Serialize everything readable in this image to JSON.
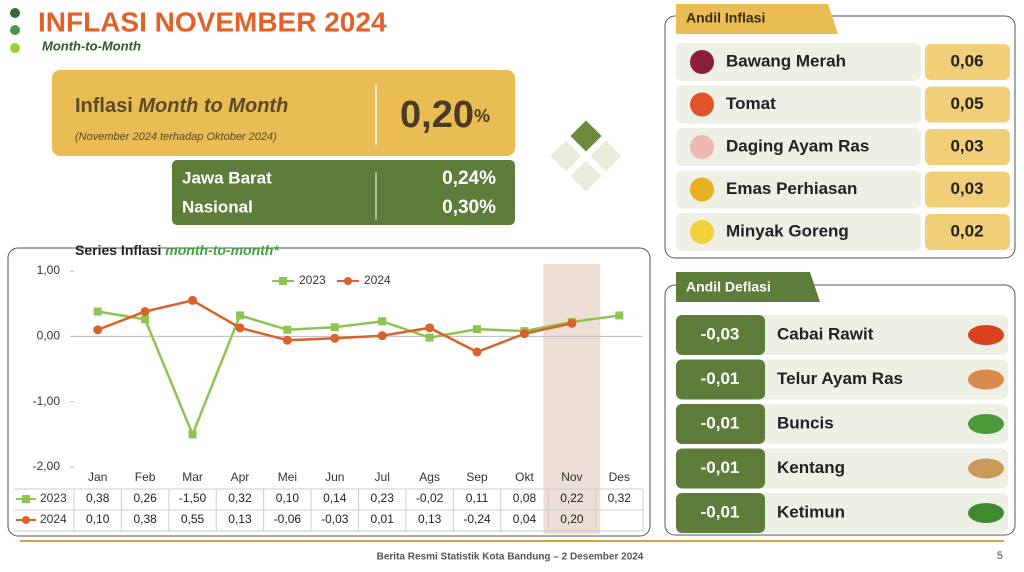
{
  "header": {
    "title": "INFLASI NOVEMBER 2024",
    "subtitle": "Month-to-Month"
  },
  "summary": {
    "label": "Inflasi",
    "label_emphasis": "Month to Month",
    "note": "(November 2024 terhadap Oktober 2024)",
    "value": "0,20",
    "unit": "%",
    "regions": [
      {
        "name": "Jawa Barat",
        "value": "0,24%"
      },
      {
        "name": "Nasional",
        "value": "0,30%"
      }
    ]
  },
  "chart_data": {
    "type": "line",
    "title": "Series Inflasi",
    "title_emphasis": "month-to-month*",
    "categories": [
      "Jan",
      "Feb",
      "Mar",
      "Apr",
      "Mei",
      "Jun",
      "Jul",
      "Ags",
      "Sep",
      "Okt",
      "Nov",
      "Des"
    ],
    "highlight": "Nov",
    "series": [
      {
        "name": "2023",
        "color": "#8dc44f",
        "values": [
          0.38,
          0.26,
          -1.5,
          0.32,
          0.1,
          0.14,
          0.23,
          -0.02,
          0.11,
          0.08,
          0.22,
          0.32
        ],
        "value_labels": [
          "0,38",
          "0,26",
          "-1,50",
          "0,32",
          "0,10",
          "0,14",
          "0,23",
          "-0,02",
          "0,11",
          "0,08",
          "0,22",
          "0,32"
        ]
      },
      {
        "name": "2024",
        "color": "#d9622b",
        "values": [
          0.1,
          0.38,
          0.55,
          0.13,
          -0.06,
          -0.03,
          0.01,
          0.13,
          -0.24,
          0.04,
          0.2,
          null
        ],
        "value_labels": [
          "0,10",
          "0,38",
          "0,55",
          "0,13",
          "-0,06",
          "-0,03",
          "0,01",
          "0,13",
          "-0,24",
          "0,04",
          "0,20",
          null
        ]
      }
    ],
    "ylim": [
      -2,
      1
    ],
    "yticks": [
      {
        "value": -2,
        "label": "-2,00"
      },
      {
        "value": -1,
        "label": "-1,00"
      },
      {
        "value": 0,
        "label": "0,00"
      },
      {
        "value": 1,
        "label": "1,00"
      }
    ],
    "legend": "top"
  },
  "andil_inflasi": {
    "title": "Andil Inflasi",
    "items": [
      {
        "name": "Bawang Merah",
        "value": "0,06"
      },
      {
        "name": "Tomat",
        "value": "0,05"
      },
      {
        "name": "Daging Ayam Ras",
        "value": "0,03"
      },
      {
        "name": "Emas Perhiasan",
        "value": "0,03"
      },
      {
        "name": "Minyak Goreng",
        "value": "0,02"
      }
    ]
  },
  "andil_deflasi": {
    "title": "Andil Deflasi",
    "items": [
      {
        "name": "Cabai Rawit",
        "value": "-0,03"
      },
      {
        "name": "Telur Ayam Ras",
        "value": "-0,01"
      },
      {
        "name": "Buncis",
        "value": "-0,01"
      },
      {
        "name": "Kentang",
        "value": "-0,01"
      },
      {
        "name": "Ketimun",
        "value": "-0,01"
      }
    ]
  },
  "footer": {
    "source": "Berita Resmi Statistik Kota Bandung –  2 Desember 2024",
    "page": "5"
  }
}
